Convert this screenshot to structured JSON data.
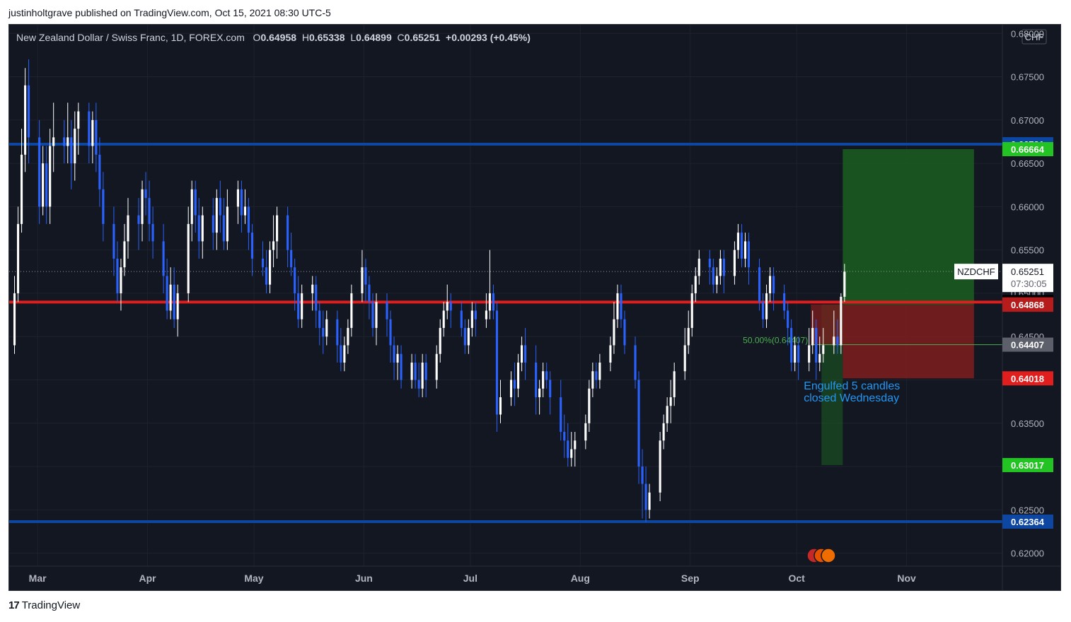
{
  "header": {
    "publish_text": "justinholtgrave published on TradingView.com, Oct 15, 2021 08:30 UTC-5"
  },
  "legend": {
    "title": "New Zealand Dollar / Swiss Franc, 1D, FOREX.com",
    "o_label": "O",
    "o": "0.64958",
    "h_label": "H",
    "h": "0.65338",
    "l_label": "L",
    "l": "0.64899",
    "c_label": "C",
    "c": "0.65251",
    "change": "+0.00293 (+0.45%)"
  },
  "footer": {
    "brand": "TradingView",
    "logo": "17"
  },
  "colors": {
    "background": "#131722",
    "up_candle": "#ffffff",
    "down_candle": "#2962ff",
    "support_resistance": "#0d47a1",
    "red_line": "#e01e1e",
    "fib_line": "#4caf50",
    "target_zone": "#1b5e20",
    "stop_zone": "#7f1d1d",
    "annotation": "#2196f3"
  },
  "chart_data": {
    "type": "candlestick",
    "symbol": "NZDCHF",
    "timeframe": "1D",
    "currency": "CHF",
    "current_price": "0.65251",
    "countdown": "07:30:05",
    "ylim": [
      0.6185,
      0.681
    ],
    "y_ticks": [
      "0.68000",
      "0.67500",
      "0.67000",
      "0.66500",
      "0.66000",
      "0.65500",
      "0.65000",
      "0.64500",
      "0.64000",
      "0.63500",
      "0.63000",
      "0.62500",
      "0.62000"
    ],
    "x_ticks": [
      "Mar",
      "Apr",
      "May",
      "Jun",
      "Jul",
      "Aug",
      "Sep",
      "Oct",
      "Nov"
    ],
    "x_tick_dates": [
      "2021-03-01",
      "2021-04-01",
      "2021-05-01",
      "2021-06-01",
      "2021-07-01",
      "2021-08-01",
      "2021-09-01",
      "2021-10-01",
      "2021-11-01"
    ],
    "x_range": [
      "2021-02-21",
      "2021-11-28"
    ],
    "price_labels": [
      {
        "value": "0.66721",
        "color": "#0d47a1"
      },
      {
        "value": "0.66664",
        "color": "#22c322"
      },
      {
        "value": "0.64899",
        "color": "#000000"
      },
      {
        "value": "0.64871",
        "color": "#e01e1e"
      },
      {
        "value": "0.64868",
        "color": "#b71c1c"
      },
      {
        "value": "0.64407",
        "color": "#5d606b"
      },
      {
        "value": "0.64018",
        "color": "#e01e1e"
      },
      {
        "value": "0.63017",
        "color": "#22c322"
      },
      {
        "value": "0.62364",
        "color": "#0d47a1"
      }
    ],
    "horizontal_lines": [
      {
        "name": "resistance",
        "value": 0.66721
      },
      {
        "name": "level-red",
        "value": 0.64899
      },
      {
        "name": "support",
        "value": 0.62364
      },
      {
        "name": "current-price-dotted",
        "value": 0.65251
      }
    ],
    "fib_label": "50.00%(0.64407)",
    "fib_value": 0.64407,
    "annotation": [
      "Engulfed 5 candles",
      "closed Wednesday"
    ],
    "positions": [
      {
        "name": "long-target-zone",
        "start": "2021-10-08",
        "end": "2021-10-13",
        "from": 0.64871,
        "to": 0.63017
      },
      {
        "name": "long-stop-zone",
        "start": "2021-10-05",
        "end": "2021-10-13",
        "from": 0.64871,
        "to": 0.64407
      },
      {
        "name": "short-target-zone",
        "start": "2021-10-14",
        "end": "2021-11-19",
        "from": 0.64868,
        "to": 0.66664
      },
      {
        "name": "short-stop-zone",
        "start": "2021-10-14",
        "end": "2021-11-19",
        "from": 0.64868,
        "to": 0.64018
      }
    ],
    "candles": [
      [
        "2021-02-22",
        0.644,
        0.65,
        0.652,
        0.643
      ],
      [
        "2021-02-23",
        0.65,
        0.658,
        0.66,
        0.649
      ],
      [
        "2021-02-24",
        0.658,
        0.666,
        0.669,
        0.657
      ],
      [
        "2021-02-25",
        0.666,
        0.674,
        0.676,
        0.664
      ],
      [
        "2021-02-26",
        0.674,
        0.668,
        0.677,
        0.665
      ],
      [
        "2021-03-01",
        0.668,
        0.66,
        0.67,
        0.658
      ],
      [
        "2021-03-02",
        0.66,
        0.665,
        0.667,
        0.659
      ],
      [
        "2021-03-03",
        0.665,
        0.66,
        0.667,
        0.658
      ],
      [
        "2021-03-04",
        0.66,
        0.667,
        0.669,
        0.658
      ],
      [
        "2021-03-05",
        0.667,
        0.668,
        0.672,
        0.664
      ],
      [
        "2021-03-08",
        0.668,
        0.667,
        0.67,
        0.665
      ],
      [
        "2021-03-09",
        0.667,
        0.668,
        0.672,
        0.665
      ],
      [
        "2021-03-10",
        0.668,
        0.665,
        0.67,
        0.662
      ],
      [
        "2021-03-11",
        0.665,
        0.669,
        0.671,
        0.663
      ],
      [
        "2021-03-12",
        0.669,
        0.671,
        0.672,
        0.666
      ],
      [
        "2021-03-15",
        0.671,
        0.667,
        0.672,
        0.665
      ],
      [
        "2021-03-16",
        0.667,
        0.67,
        0.671,
        0.665
      ],
      [
        "2021-03-17",
        0.67,
        0.666,
        0.672,
        0.664
      ],
      [
        "2021-03-18",
        0.666,
        0.662,
        0.668,
        0.66
      ],
      [
        "2021-03-19",
        0.662,
        0.658,
        0.664,
        0.656
      ],
      [
        "2021-03-22",
        0.658,
        0.654,
        0.66,
        0.652
      ],
      [
        "2021-03-23",
        0.654,
        0.65,
        0.656,
        0.649
      ],
      [
        "2021-03-24",
        0.65,
        0.653,
        0.654,
        0.648
      ],
      [
        "2021-03-25",
        0.653,
        0.656,
        0.658,
        0.652
      ],
      [
        "2021-03-26",
        0.656,
        0.659,
        0.661,
        0.654
      ],
      [
        "2021-03-29",
        0.659,
        0.658,
        0.661,
        0.655
      ],
      [
        "2021-03-30",
        0.658,
        0.662,
        0.663,
        0.656
      ],
      [
        "2021-03-31",
        0.662,
        0.661,
        0.664,
        0.659
      ],
      [
        "2021-04-01",
        0.661,
        0.658,
        0.663,
        0.656
      ],
      [
        "2021-04-02",
        0.658,
        0.656,
        0.66,
        0.654
      ],
      [
        "2021-04-05",
        0.656,
        0.652,
        0.658,
        0.65
      ],
      [
        "2021-04-06",
        0.652,
        0.648,
        0.654,
        0.647
      ],
      [
        "2021-04-07",
        0.648,
        0.651,
        0.653,
        0.647
      ],
      [
        "2021-04-08",
        0.651,
        0.647,
        0.653,
        0.646
      ],
      [
        "2021-04-09",
        0.647,
        0.65,
        0.651,
        0.645
      ],
      [
        "2021-04-12",
        0.65,
        0.658,
        0.66,
        0.649
      ],
      [
        "2021-04-13",
        0.658,
        0.662,
        0.663,
        0.656
      ],
      [
        "2021-04-14",
        0.662,
        0.659,
        0.663,
        0.657
      ],
      [
        "2021-04-15",
        0.659,
        0.656,
        0.661,
        0.654
      ],
      [
        "2021-04-16",
        0.656,
        0.659,
        0.66,
        0.654
      ],
      [
        "2021-04-19",
        0.659,
        0.657,
        0.661,
        0.655
      ],
      [
        "2021-04-20",
        0.657,
        0.661,
        0.662,
        0.655
      ],
      [
        "2021-04-21",
        0.661,
        0.659,
        0.663,
        0.657
      ],
      [
        "2021-04-22",
        0.659,
        0.656,
        0.661,
        0.655
      ],
      [
        "2021-04-23",
        0.656,
        0.66,
        0.662,
        0.655
      ],
      [
        "2021-04-26",
        0.66,
        0.662,
        0.663,
        0.658
      ],
      [
        "2021-04-27",
        0.662,
        0.659,
        0.663,
        0.657
      ],
      [
        "2021-04-28",
        0.659,
        0.66,
        0.662,
        0.658
      ],
      [
        "2021-04-29",
        0.66,
        0.657,
        0.661,
        0.655
      ],
      [
        "2021-04-30",
        0.657,
        0.654,
        0.658,
        0.652
      ],
      [
        "2021-05-03",
        0.654,
        0.653,
        0.656,
        0.652
      ],
      [
        "2021-05-04",
        0.653,
        0.651,
        0.655,
        0.65
      ],
      [
        "2021-05-05",
        0.651,
        0.655,
        0.656,
        0.65
      ],
      [
        "2021-05-06",
        0.655,
        0.656,
        0.659,
        0.653
      ],
      [
        "2021-05-07",
        0.656,
        0.659,
        0.66,
        0.654
      ],
      [
        "2021-05-10",
        0.659,
        0.655,
        0.66,
        0.653
      ],
      [
        "2021-05-11",
        0.655,
        0.653,
        0.657,
        0.652
      ],
      [
        "2021-05-12",
        0.653,
        0.65,
        0.654,
        0.648
      ],
      [
        "2021-05-13",
        0.65,
        0.647,
        0.652,
        0.646
      ],
      [
        "2021-05-14",
        0.647,
        0.65,
        0.651,
        0.646
      ],
      [
        "2021-05-17",
        0.65,
        0.651,
        0.652,
        0.648
      ],
      [
        "2021-05-18",
        0.651,
        0.648,
        0.652,
        0.646
      ],
      [
        "2021-05-19",
        0.648,
        0.646,
        0.649,
        0.644
      ],
      [
        "2021-05-20",
        0.646,
        0.645,
        0.648,
        0.643
      ],
      [
        "2021-05-21",
        0.645,
        0.647,
        0.648,
        0.644
      ],
      [
        "2021-05-24",
        0.647,
        0.644,
        0.648,
        0.642
      ],
      [
        "2021-05-25",
        0.644,
        0.642,
        0.646,
        0.641
      ],
      [
        "2021-05-26",
        0.642,
        0.644,
        0.645,
        0.641
      ],
      [
        "2021-05-27",
        0.644,
        0.646,
        0.647,
        0.643
      ],
      [
        "2021-05-28",
        0.646,
        0.65,
        0.651,
        0.645
      ],
      [
        "2021-05-31",
        0.65,
        0.653,
        0.655,
        0.649
      ],
      [
        "2021-06-01",
        0.653,
        0.651,
        0.654,
        0.649
      ],
      [
        "2021-06-02",
        0.651,
        0.649,
        0.652,
        0.647
      ],
      [
        "2021-06-03",
        0.649,
        0.646,
        0.65,
        0.645
      ],
      [
        "2021-06-04",
        0.646,
        0.649,
        0.65,
        0.644
      ],
      [
        "2021-06-07",
        0.649,
        0.647,
        0.65,
        0.645
      ],
      [
        "2021-06-08",
        0.647,
        0.644,
        0.648,
        0.642
      ],
      [
        "2021-06-09",
        0.644,
        0.642,
        0.645,
        0.64
      ],
      [
        "2021-06-10",
        0.642,
        0.643,
        0.644,
        0.64
      ],
      [
        "2021-06-11",
        0.643,
        0.64,
        0.644,
        0.639
      ],
      [
        "2021-06-14",
        0.64,
        0.642,
        0.643,
        0.639
      ],
      [
        "2021-06-15",
        0.642,
        0.64,
        0.643,
        0.639
      ],
      [
        "2021-06-16",
        0.64,
        0.639,
        0.642,
        0.638
      ],
      [
        "2021-06-17",
        0.639,
        0.642,
        0.643,
        0.638
      ],
      [
        "2021-06-18",
        0.642,
        0.64,
        0.643,
        0.638
      ],
      [
        "2021-06-21",
        0.64,
        0.643,
        0.644,
        0.639
      ],
      [
        "2021-06-22",
        0.643,
        0.646,
        0.647,
        0.642
      ],
      [
        "2021-06-23",
        0.646,
        0.648,
        0.649,
        0.645
      ],
      [
        "2021-06-24",
        0.648,
        0.649,
        0.651,
        0.647
      ],
      [
        "2021-06-25",
        0.649,
        0.648,
        0.65,
        0.646
      ],
      [
        "2021-06-28",
        0.648,
        0.646,
        0.649,
        0.645
      ],
      [
        "2021-06-29",
        0.646,
        0.644,
        0.647,
        0.643
      ],
      [
        "2021-06-30",
        0.644,
        0.646,
        0.647,
        0.643
      ],
      [
        "2021-07-01",
        0.646,
        0.648,
        0.649,
        0.645
      ],
      [
        "2021-07-02",
        0.648,
        0.647,
        0.649,
        0.645
      ],
      [
        "2021-07-05",
        0.647,
        0.648,
        0.65,
        0.646
      ],
      [
        "2021-07-06",
        0.648,
        0.65,
        0.655,
        0.647
      ],
      [
        "2021-07-07",
        0.65,
        0.648,
        0.651,
        0.647
      ],
      [
        "2021-07-08",
        0.648,
        0.636,
        0.649,
        0.634
      ],
      [
        "2021-07-09",
        0.636,
        0.638,
        0.64,
        0.635
      ],
      [
        "2021-07-12",
        0.638,
        0.64,
        0.641,
        0.637
      ],
      [
        "2021-07-13",
        0.64,
        0.639,
        0.642,
        0.637
      ],
      [
        "2021-07-14",
        0.639,
        0.642,
        0.643,
        0.638
      ],
      [
        "2021-07-15",
        0.642,
        0.644,
        0.645,
        0.641
      ],
      [
        "2021-07-16",
        0.644,
        0.642,
        0.646,
        0.64
      ],
      [
        "2021-07-19",
        0.642,
        0.638,
        0.644,
        0.636
      ],
      [
        "2021-07-20",
        0.638,
        0.639,
        0.64,
        0.636
      ],
      [
        "2021-07-21",
        0.639,
        0.641,
        0.642,
        0.638
      ],
      [
        "2021-07-22",
        0.641,
        0.64,
        0.642,
        0.639
      ],
      [
        "2021-07-23",
        0.64,
        0.638,
        0.641,
        0.636
      ],
      [
        "2021-07-26",
        0.638,
        0.634,
        0.64,
        0.633
      ],
      [
        "2021-07-27",
        0.634,
        0.633,
        0.636,
        0.631
      ],
      [
        "2021-07-28",
        0.633,
        0.631,
        0.635,
        0.63
      ],
      [
        "2021-07-29",
        0.631,
        0.632,
        0.634,
        0.63
      ],
      [
        "2021-07-30",
        0.632,
        0.633,
        0.634,
        0.63
      ],
      [
        "2021-08-02",
        0.633,
        0.635,
        0.636,
        0.632
      ],
      [
        "2021-08-03",
        0.635,
        0.639,
        0.64,
        0.634
      ],
      [
        "2021-08-04",
        0.639,
        0.641,
        0.642,
        0.638
      ],
      [
        "2021-08-05",
        0.641,
        0.64,
        0.642,
        0.639
      ],
      [
        "2021-08-06",
        0.64,
        0.642,
        0.643,
        0.639
      ],
      [
        "2021-08-09",
        0.642,
        0.644,
        0.645,
        0.641
      ],
      [
        "2021-08-10",
        0.644,
        0.647,
        0.649,
        0.643
      ],
      [
        "2021-08-11",
        0.647,
        0.65,
        0.651,
        0.646
      ],
      [
        "2021-08-12",
        0.65,
        0.647,
        0.651,
        0.646
      ],
      [
        "2021-08-13",
        0.647,
        0.644,
        0.648,
        0.643
      ],
      [
        "2021-08-16",
        0.644,
        0.64,
        0.645,
        0.639
      ],
      [
        "2021-08-17",
        0.64,
        0.63,
        0.641,
        0.628
      ],
      [
        "2021-08-18",
        0.63,
        0.628,
        0.632,
        0.624
      ],
      [
        "2021-08-19",
        0.628,
        0.625,
        0.63,
        0.6236
      ],
      [
        "2021-08-20",
        0.625,
        0.627,
        0.628,
        0.624
      ],
      [
        "2021-08-23",
        0.627,
        0.633,
        0.634,
        0.626
      ],
      [
        "2021-08-24",
        0.633,
        0.635,
        0.636,
        0.632
      ],
      [
        "2021-08-25",
        0.635,
        0.637,
        0.638,
        0.634
      ],
      [
        "2021-08-26",
        0.637,
        0.638,
        0.64,
        0.635
      ],
      [
        "2021-08-27",
        0.638,
        0.641,
        0.642,
        0.637
      ],
      [
        "2021-08-30",
        0.641,
        0.644,
        0.646,
        0.64
      ],
      [
        "2021-08-31",
        0.644,
        0.646,
        0.648,
        0.643
      ],
      [
        "2021-09-01",
        0.646,
        0.65,
        0.651,
        0.645
      ],
      [
        "2021-09-02",
        0.65,
        0.652,
        0.653,
        0.649
      ],
      [
        "2021-09-03",
        0.652,
        0.654,
        0.655,
        0.651
      ],
      [
        "2021-09-06",
        0.654,
        0.653,
        0.655,
        0.651
      ],
      [
        "2021-09-07",
        0.653,
        0.651,
        0.654,
        0.65
      ],
      [
        "2021-09-08",
        0.651,
        0.652,
        0.653,
        0.65
      ],
      [
        "2021-09-09",
        0.652,
        0.654,
        0.655,
        0.651
      ],
      [
        "2021-09-10",
        0.654,
        0.652,
        0.655,
        0.65
      ],
      [
        "2021-09-13",
        0.652,
        0.655,
        0.656,
        0.651
      ],
      [
        "2021-09-14",
        0.655,
        0.657,
        0.658,
        0.654
      ],
      [
        "2021-09-15",
        0.657,
        0.654,
        0.658,
        0.653
      ],
      [
        "2021-09-16",
        0.654,
        0.656,
        0.657,
        0.653
      ],
      [
        "2021-09-17",
        0.656,
        0.653,
        0.657,
        0.651
      ],
      [
        "2021-09-20",
        0.653,
        0.649,
        0.654,
        0.648
      ],
      [
        "2021-09-21",
        0.649,
        0.647,
        0.65,
        0.646
      ],
      [
        "2021-09-22",
        0.647,
        0.65,
        0.651,
        0.646
      ],
      [
        "2021-09-23",
        0.65,
        0.652,
        0.653,
        0.649
      ],
      [
        "2021-09-24",
        0.652,
        0.65,
        0.653,
        0.648
      ],
      [
        "2021-09-27",
        0.65,
        0.648,
        0.651,
        0.647
      ],
      [
        "2021-09-28",
        0.648,
        0.646,
        0.649,
        0.644
      ],
      [
        "2021-09-29",
        0.646,
        0.642,
        0.647,
        0.641
      ],
      [
        "2021-09-30",
        0.642,
        0.644,
        0.645,
        0.641
      ],
      [
        "2021-10-01",
        0.644,
        0.642,
        0.645,
        0.64
      ],
      [
        "2021-10-04",
        0.642,
        0.644,
        0.646,
        0.641
      ],
      [
        "2021-10-05",
        0.644,
        0.646,
        0.648,
        0.643
      ],
      [
        "2021-10-06",
        0.646,
        0.642,
        0.647,
        0.64
      ],
      [
        "2021-10-07",
        0.642,
        0.643,
        0.645,
        0.641
      ],
      [
        "2021-10-08",
        0.643,
        0.644,
        0.646,
        0.642
      ],
      [
        "2021-10-11",
        0.644,
        0.645,
        0.648,
        0.643
      ],
      [
        "2021-10-12",
        0.645,
        0.644,
        0.647,
        0.643
      ],
      [
        "2021-10-13",
        0.644,
        0.6496,
        0.65,
        0.643
      ],
      [
        "2021-10-14",
        0.6496,
        0.6525,
        0.6534,
        0.649
      ]
    ]
  }
}
